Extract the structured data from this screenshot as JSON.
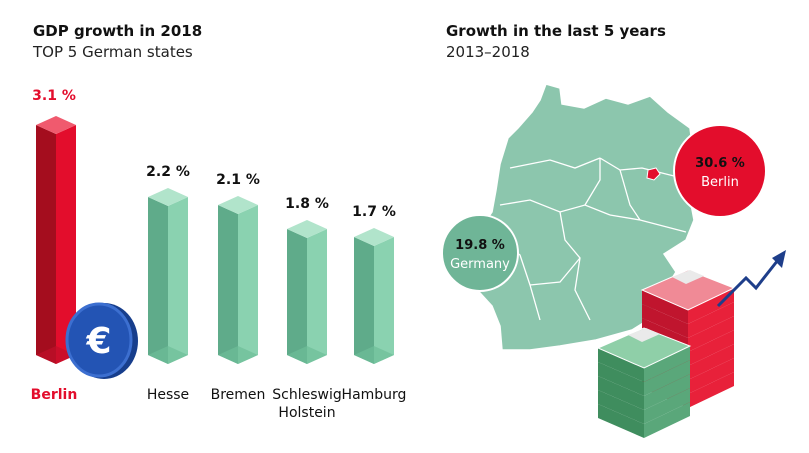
{
  "left": {
    "title": "GDP growth in 2018",
    "subtitle": "TOP 5 German states"
  },
  "right": {
    "title": "Growth in the last 5 years",
    "subtitle": "2013–2018"
  },
  "colors": {
    "highlight": "#e30d2c",
    "highlight_dark": "#a40d1e",
    "bar": "#8ad2b0",
    "bar_dark": "#5fab8a",
    "map": "#8cc6ad",
    "map_border": "#ffffff",
    "bubble_green": "#6fb597",
    "arrow": "#1e3e8a",
    "coin": "#2354b4"
  },
  "icons": [
    "euro-coin-icon",
    "money-stack-icon",
    "growth-arrow-icon",
    "germany-map-icon"
  ],
  "chart_data": [
    {
      "type": "bar",
      "title": "GDP growth in 2018",
      "subtitle": "TOP 5 German states",
      "categories": [
        "Berlin",
        "Hesse",
        "Bremen",
        "Schleswig Holstein",
        "Hamburg"
      ],
      "category_lines": [
        [
          "Berlin"
        ],
        [
          "Hesse"
        ],
        [
          "Bremen"
        ],
        [
          "Schleswig",
          "Holstein"
        ],
        [
          "Hamburg"
        ]
      ],
      "values": [
        3.1,
        2.2,
        2.1,
        1.8,
        1.7
      ],
      "value_labels": [
        "3.1 %",
        "2.2 %",
        "2.1 %",
        "1.8 %",
        "1.7 %"
      ],
      "highlight": "Berlin",
      "ylim": [
        0,
        3.1
      ]
    },
    {
      "type": "bubble",
      "title": "Growth in the last 5 years",
      "subtitle": "2013–2018",
      "items": [
        {
          "label": "Germany",
          "value": 19.8,
          "value_label": "19.8 %"
        },
        {
          "label": "Berlin",
          "value": 30.6,
          "value_label": "30.6 %"
        }
      ]
    }
  ]
}
